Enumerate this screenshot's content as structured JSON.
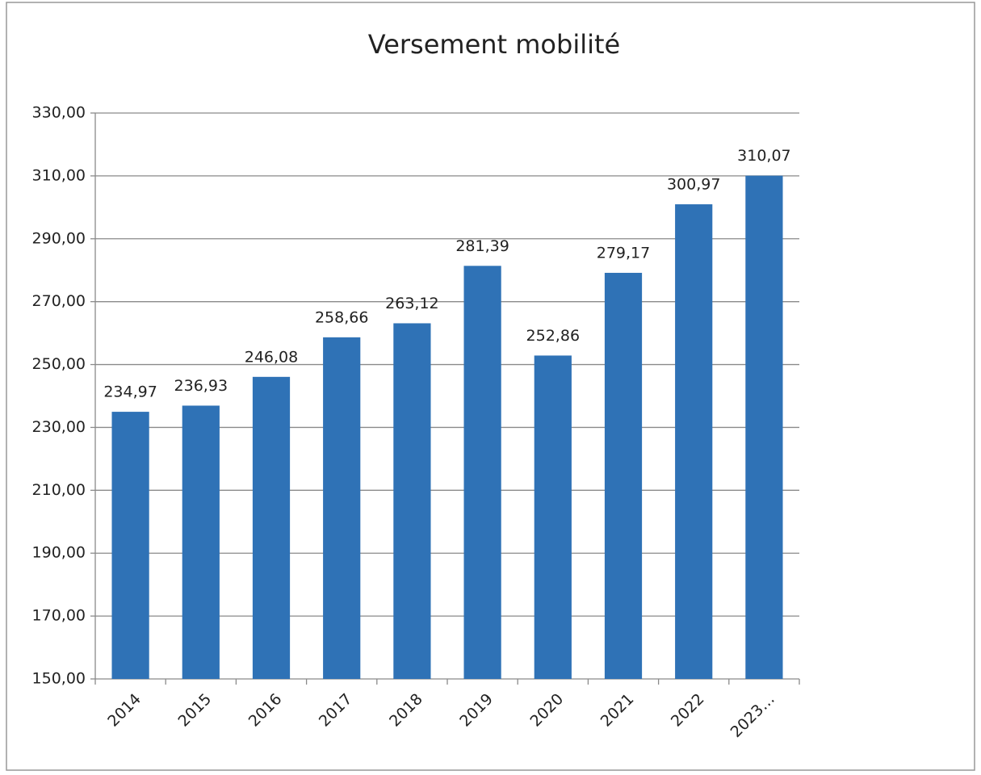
{
  "chart_data": {
    "type": "bar",
    "title": "Versement mobilité",
    "categories": [
      "2014",
      "2015",
      "2016",
      "2017",
      "2018",
      "2019",
      "2020",
      "2021",
      "2022",
      "2023…"
    ],
    "values": [
      234.97,
      236.93,
      246.08,
      258.66,
      263.12,
      281.39,
      252.86,
      279.17,
      300.97,
      310.07
    ],
    "value_labels": [
      "234,97",
      "236,93",
      "246,08",
      "258,66",
      "263,12",
      "281,39",
      "252,86",
      "279,17",
      "300,97",
      "310,07"
    ],
    "color": "#2f72b6",
    "ylim": [
      150,
      330
    ],
    "yticks": [
      {
        "value": 150,
        "label": "150,00"
      },
      {
        "value": 170,
        "label": "170,00"
      },
      {
        "value": 190,
        "label": "190,00"
      },
      {
        "value": 210,
        "label": "210,00"
      },
      {
        "value": 230,
        "label": "230,00"
      },
      {
        "value": 250,
        "label": "250,00"
      },
      {
        "value": 270,
        "label": "270,00"
      },
      {
        "value": 290,
        "label": "290,00"
      },
      {
        "value": 310,
        "label": "310,00"
      },
      {
        "value": 330,
        "label": "330,00"
      }
    ],
    "grid": true
  }
}
